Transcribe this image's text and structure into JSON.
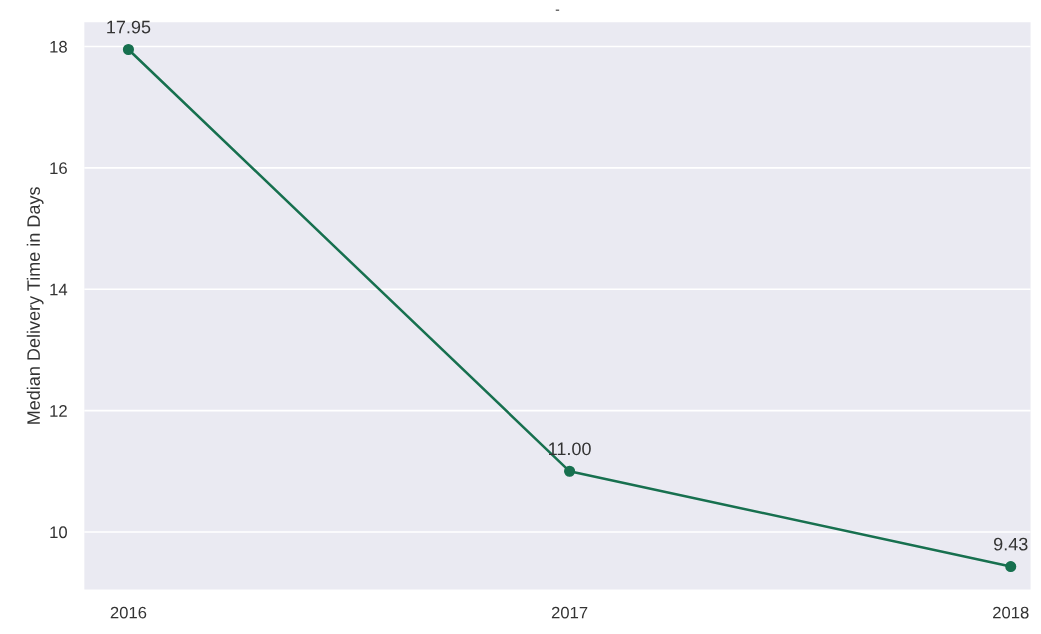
{
  "chart_data": {
    "type": "line",
    "title": "-",
    "ylabel": "Median Delivery Time in Days",
    "categories": [
      "2016",
      "2017",
      "2018"
    ],
    "series": [
      {
        "color": "#17704f",
        "values": [
          17.95,
          11.0,
          9.43
        ],
        "value_labels": [
          "17.95",
          "11.00",
          "9.43"
        ]
      }
    ],
    "ylim": [
      9.05,
      18.4
    ],
    "yticks": [
      10,
      12,
      14,
      16,
      18
    ],
    "grid": "y",
    "marker": "circle",
    "line_style": "solid"
  }
}
